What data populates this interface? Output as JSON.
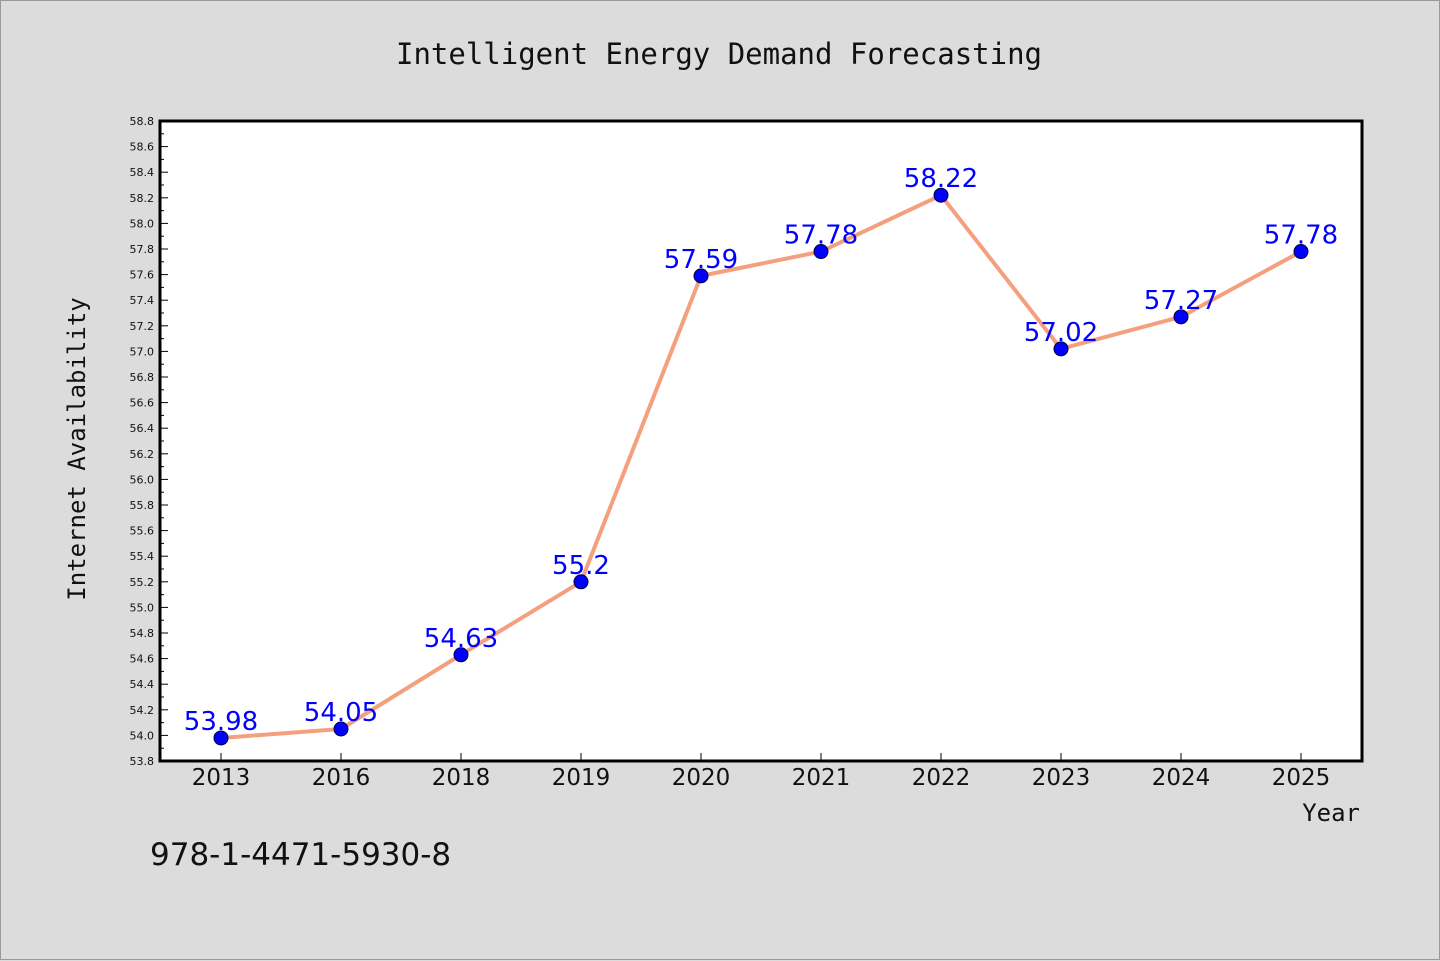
{
  "figure": {
    "footnote": "978-1-4471-5930-8",
    "background": "#dcdcdc"
  },
  "chart_data": {
    "type": "line",
    "title": "Intelligent Energy Demand Forecasting",
    "xlabel": "Year",
    "ylabel": "Internet Availability",
    "categories": [
      "2013",
      "2016",
      "2018",
      "2019",
      "2020",
      "2021",
      "2022",
      "2023",
      "2024",
      "2025"
    ],
    "series": [
      {
        "values": [
          53.98,
          54.05,
          54.63,
          55.2,
          57.59,
          57.78,
          58.22,
          57.02,
          57.27,
          57.78
        ],
        "labels": [
          "53.98",
          "54.05",
          "54.63",
          "55.2",
          "57.59",
          "57.78",
          "58.22",
          "57.02",
          "57.27",
          "57.78"
        ],
        "line_color": "#f4a07e",
        "marker_color": "#0000ff"
      }
    ],
    "ylim": [
      53.8,
      58.8
    ],
    "ytick_step": 0.2,
    "grid": false,
    "legend": "none",
    "colors": {
      "plot_background": "#ffffff",
      "data_label": "#0000ff",
      "axes": "#000000"
    }
  }
}
